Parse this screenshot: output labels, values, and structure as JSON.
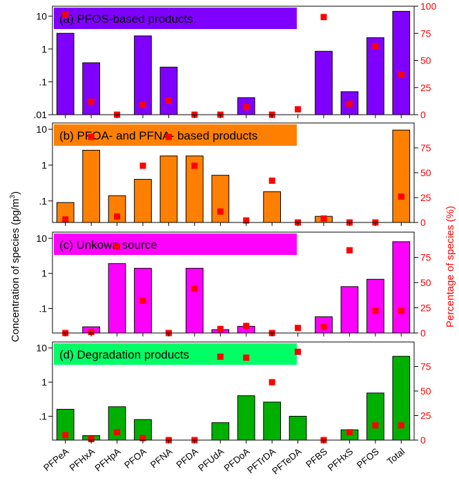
{
  "chart_data": {
    "type": "bar",
    "categories": [
      "PFPeA",
      "PFHxA",
      "PFHpA",
      "PFOA",
      "PFNA",
      "PFDA",
      "PFUdA",
      "PFDoA",
      "PFTrDA",
      "PFTeDA",
      "PFBS",
      "PFHxS",
      "PFOS",
      "Total"
    ],
    "ylabel": "Concentration of species (pg/m",
    "ylabel_sup": "3",
    "ylabel_close": ")",
    "y2label": "Percentage of species (%)",
    "yscale": "log",
    "y2lim": [
      0,
      100
    ],
    "panels": [
      {
        "title": "(a) PFOS-based products",
        "title_color": "#8000ff",
        "bar_color": "#8000ff",
        "ylim": [
          0.01,
          20
        ],
        "ytick_values": [
          0.01,
          0.1,
          1,
          10
        ],
        "ytick_labels": [
          ".01",
          ".1",
          "1",
          "10"
        ],
        "y2tick_values": [
          0,
          25,
          50,
          75,
          100
        ],
        "y2tick_labels": [
          "0",
          "25",
          "50",
          "75",
          "100"
        ],
        "values": [
          3.0,
          0.38,
          null,
          2.5,
          0.28,
          null,
          null,
          0.033,
          null,
          null,
          0.85,
          0.05,
          2.2,
          14.0
        ],
        "percent": [
          92,
          12,
          0,
          9,
          13,
          0,
          0,
          7,
          0,
          5,
          90,
          10,
          63,
          37
        ]
      },
      {
        "title": "(b) PFOA- and PFNA- based products",
        "title_color": "#ff8000",
        "bar_color": "#ff8000",
        "ylim": [
          0.025,
          15
        ],
        "ytick_values": [
          0.1,
          1,
          10
        ],
        "ytick_labels": [
          ".1",
          "1",
          "10"
        ],
        "y2tick_values": [
          0,
          25,
          50,
          75
        ],
        "y2tick_labels": [
          "0",
          "25",
          "50",
          "75"
        ],
        "values": [
          0.09,
          2.6,
          0.14,
          0.4,
          1.8,
          1.8,
          0.52,
          null,
          0.18,
          null,
          0.037,
          null,
          null,
          9.5
        ],
        "percent": [
          3,
          86,
          6,
          57,
          86,
          57,
          11,
          2,
          42,
          0,
          4,
          0,
          0,
          26
        ]
      },
      {
        "title": "(c) Unkown source",
        "title_color": "#ff00ff",
        "bar_color": "#ff00ff",
        "ylim": [
          0.02,
          15
        ],
        "ytick_values": [
          0.1,
          1,
          10
        ],
        "ytick_labels": [
          ".1",
          "1",
          "10"
        ],
        "y2tick_values": [
          0,
          25,
          50,
          75
        ],
        "y2tick_labels": [
          "0",
          "25",
          "50",
          "75"
        ],
        "values": [
          null,
          0.03,
          1.9,
          1.4,
          null,
          1.4,
          0.025,
          0.031,
          null,
          null,
          0.058,
          0.42,
          0.68,
          8.0
        ],
        "percent": [
          0,
          1,
          86,
          32,
          0,
          44,
          4,
          7,
          0,
          5,
          6,
          82,
          22,
          22
        ]
      },
      {
        "title": "(d) Degradation products",
        "title_color": "#00ff66",
        "bar_color": "#00b000",
        "ylim": [
          0.02,
          15
        ],
        "ytick_values": [
          0.1,
          1,
          10
        ],
        "ytick_labels": [
          ".1",
          "1",
          "10"
        ],
        "y2tick_values": [
          0,
          25,
          50,
          75
        ],
        "y2tick_labels": [
          "0",
          "25",
          "50",
          "75"
        ],
        "values": [
          0.16,
          0.027,
          0.19,
          0.08,
          null,
          null,
          0.065,
          0.4,
          0.26,
          0.1,
          null,
          0.04,
          0.48,
          5.7
        ],
        "percent": [
          5,
          1,
          8,
          2,
          0,
          0,
          85,
          84,
          59,
          90,
          0,
          8,
          15,
          15
        ]
      }
    ],
    "grid": false,
    "marker_color": "#ff0000"
  }
}
